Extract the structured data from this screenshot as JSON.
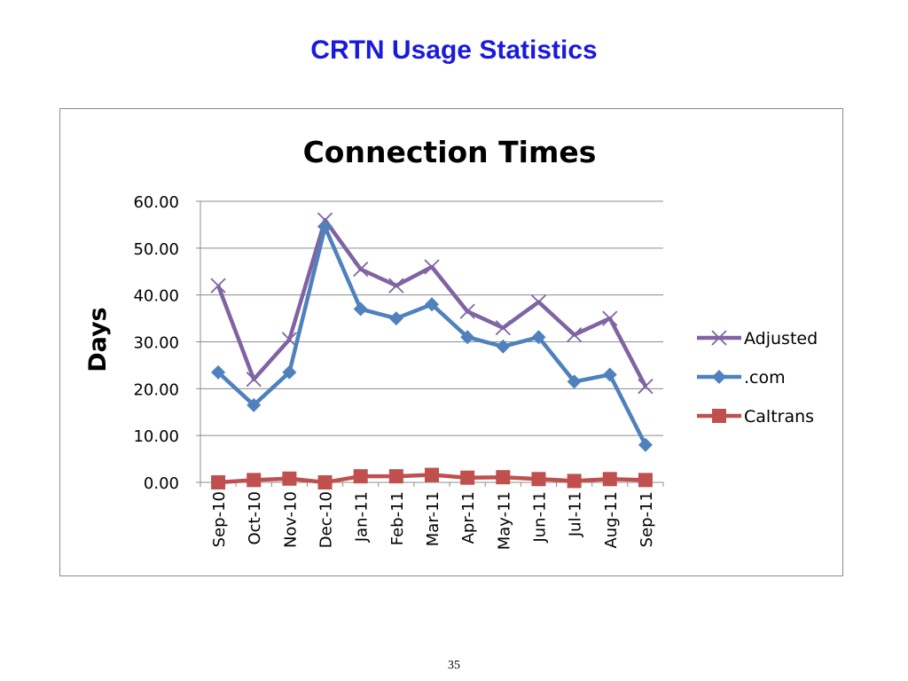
{
  "slide": {
    "title": "CRTN Usage Statistics",
    "page_number": "35"
  },
  "chart_data": {
    "type": "line",
    "title": "Connection Times",
    "xlabel": "",
    "ylabel": "Days",
    "ylim": [
      0,
      60
    ],
    "yticks": [
      "0.00",
      "10.00",
      "20.00",
      "30.00",
      "40.00",
      "50.00",
      "60.00"
    ],
    "grid": true,
    "legend_position": "right",
    "categories": [
      "Sep-10",
      "Oct-10",
      "Nov-10",
      "Dec-10",
      "Jan-11",
      "Feb-11",
      "Mar-11",
      "Apr-11",
      "May-11",
      "Jun-11",
      "Jul-11",
      "Aug-11",
      "Sep-11"
    ],
    "series": [
      {
        "name": "Adjusted",
        "color": "#8064a2",
        "marker": "x",
        "values": [
          42.0,
          22.0,
          30.5,
          56.0,
          45.5,
          42.0,
          46.0,
          36.5,
          33.0,
          38.5,
          31.5,
          35.0,
          20.5
        ]
      },
      {
        "name": ".com",
        "color": "#4f81bd",
        "marker": "diamond",
        "values": [
          23.5,
          16.5,
          23.5,
          54.5,
          37.0,
          35.0,
          38.0,
          31.0,
          29.0,
          31.0,
          21.5,
          23.0,
          8.0
        ]
      },
      {
        "name": "Caltrans",
        "color": "#c0504d",
        "marker": "square",
        "values": [
          0.0,
          0.5,
          0.8,
          0.0,
          1.3,
          1.3,
          1.6,
          1.0,
          1.1,
          0.7,
          0.3,
          0.7,
          0.5
        ]
      }
    ]
  }
}
